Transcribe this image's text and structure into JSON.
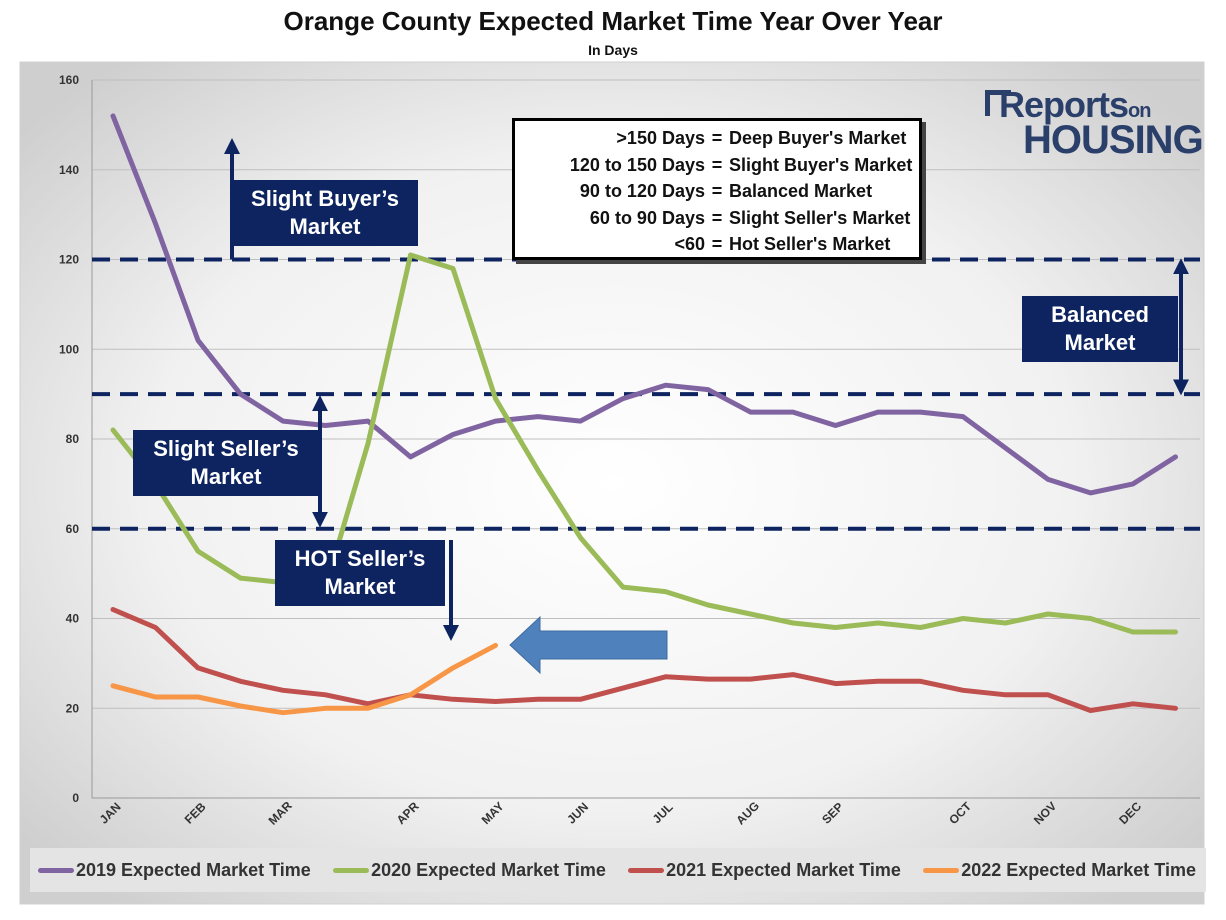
{
  "chart_data": {
    "type": "line",
    "title": "Orange County Expected Market Time Year Over Year",
    "subtitle": "In Days",
    "ylim": [
      0,
      160
    ],
    "yticks": [
      0,
      20,
      40,
      60,
      80,
      100,
      120,
      140,
      160
    ],
    "grid": true,
    "legend_position": "bottom",
    "x_labels": [
      {
        "label": "JAN",
        "x": 0
      },
      {
        "label": "FEB",
        "x": 2
      },
      {
        "label": "MAR",
        "x": 4
      },
      {
        "label": "APR",
        "x": 7
      },
      {
        "label": "MAY",
        "x": 9
      },
      {
        "label": "JUN",
        "x": 11
      },
      {
        "label": "JUL",
        "x": 13
      },
      {
        "label": "AUG",
        "x": 15
      },
      {
        "label": "SEP",
        "x": 17
      },
      {
        "label": "OCT",
        "x": 20
      },
      {
        "label": "NOV",
        "x": 22
      },
      {
        "label": "DEC",
        "x": 24
      }
    ],
    "series": [
      {
        "name": "2019 Expected Market Time",
        "color": "#8064a2",
        "values": [
          152,
          128,
          102,
          90,
          84,
          83,
          84,
          76,
          81,
          84,
          85,
          84,
          89,
          92,
          91,
          86,
          86,
          83,
          86,
          86,
          85,
          78,
          71,
          68,
          70,
          76
        ]
      },
      {
        "name": "2020 Expected Market Time",
        "color": "#9bbb59",
        "values": [
          82,
          70,
          55,
          49,
          48,
          47,
          79,
          121,
          118,
          89,
          73,
          58,
          47,
          46,
          43,
          41,
          39,
          38,
          39,
          38,
          40,
          39,
          41,
          40,
          37,
          37
        ]
      },
      {
        "name": "2021 Expected Market Time",
        "color": "#c0504d",
        "values": [
          42,
          38,
          29,
          26,
          24,
          23,
          21,
          23,
          22,
          21.5,
          22,
          22,
          24.5,
          27,
          26.5,
          26.5,
          27.5,
          25.5,
          26,
          26,
          24,
          23,
          23,
          19.5,
          21,
          20
        ]
      },
      {
        "name": "2022 Expected Market Time",
        "color": "#f79646",
        "values": [
          25,
          22.5,
          22.5,
          20.5,
          19,
          20,
          20,
          23,
          29,
          34
        ]
      }
    ],
    "thresholds": [
      120,
      90,
      60
    ]
  },
  "market_key": [
    {
      "range": ">150 Days",
      "eq": "=",
      "meaning": "Deep Buyer's Market"
    },
    {
      "range": "120 to 150 Days",
      "eq": "=",
      "meaning": "Slight Buyer's Market"
    },
    {
      "range": "90 to 120 Days",
      "eq": "=",
      "meaning": "Balanced Market"
    },
    {
      "range": "60 to 90 Days",
      "eq": "=",
      "meaning": "Slight Seller's Market"
    },
    {
      "range": "<60",
      "eq": "=",
      "meaning": "Hot Seller's Market"
    }
  ],
  "callouts": {
    "slight_buyer": [
      "Slight Buyer’s",
      "Market"
    ],
    "balanced": [
      "Balanced",
      "Market"
    ],
    "slight_seller": [
      "Slight Seller’s",
      "Market"
    ],
    "hot_seller": [
      "HOT Seller’s",
      "Market"
    ]
  },
  "logo": {
    "line1": "Reports",
    "line1_small": "on",
    "line2": "HOUSING"
  },
  "colors": {
    "callout_bg": "#0d2461",
    "threshold": "#0d2461",
    "pointer_arrow": "#4f81bd"
  }
}
